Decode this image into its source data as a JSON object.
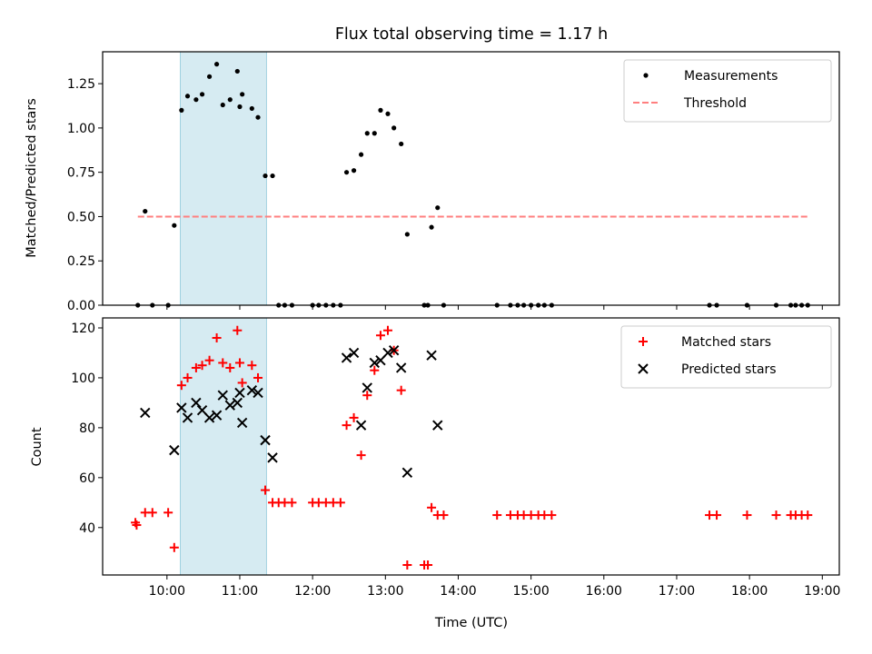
{
  "chart_data": [
    {
      "type": "scatter",
      "title": "Flux total observing time = 1.17 h",
      "xlabel": "",
      "ylabel": "Matched/Predicted stars",
      "xlim": [
        "09:07",
        "19:14"
      ],
      "ylim": [
        0,
        1.43
      ],
      "yticks": [
        0.0,
        0.25,
        0.5,
        0.75,
        1.0,
        1.25
      ],
      "ytick_labels": [
        "0.00",
        "0.25",
        "0.50",
        "0.75",
        "1.00",
        "1.25"
      ],
      "highlight_span": [
        "10:11",
        "11:22"
      ],
      "legend": {
        "position": "top-right",
        "entries": [
          "Measurements",
          "Threshold"
        ]
      },
      "series": [
        {
          "name": "Measurements",
          "marker": "dot",
          "color": "#000000",
          "points": [
            [
              "09:36",
              0.0
            ],
            [
              "09:42",
              0.53
            ],
            [
              "09:48",
              0.0
            ],
            [
              "10:01",
              0.0
            ],
            [
              "10:06",
              0.45
            ],
            [
              "10:12",
              1.1
            ],
            [
              "10:17",
              1.18
            ],
            [
              "10:24",
              1.16
            ],
            [
              "10:29",
              1.19
            ],
            [
              "10:35",
              1.29
            ],
            [
              "10:41",
              1.36
            ],
            [
              "10:46",
              1.13
            ],
            [
              "10:52",
              1.16
            ],
            [
              "10:58",
              1.32
            ],
            [
              "11:00",
              1.12
            ],
            [
              "11:02",
              1.19
            ],
            [
              "11:10",
              1.11
            ],
            [
              "11:15",
              1.06
            ],
            [
              "11:21",
              0.73
            ],
            [
              "11:27",
              0.73
            ],
            [
              "11:32",
              0.0
            ],
            [
              "11:37",
              0.0
            ],
            [
              "11:43",
              0.0
            ],
            [
              "12:00",
              0.0
            ],
            [
              "12:05",
              0.0
            ],
            [
              "12:11",
              0.0
            ],
            [
              "12:17",
              0.0
            ],
            [
              "12:23",
              0.0
            ],
            [
              "12:28",
              0.75
            ],
            [
              "12:34",
              0.76
            ],
            [
              "12:40",
              0.85
            ],
            [
              "12:45",
              0.97
            ],
            [
              "12:51",
              0.97
            ],
            [
              "12:56",
              1.1
            ],
            [
              "13:02",
              1.08
            ],
            [
              "13:07",
              1.0
            ],
            [
              "13:13",
              0.91
            ],
            [
              "13:18",
              0.4
            ],
            [
              "13:32",
              0.0
            ],
            [
              "13:35",
              0.0
            ],
            [
              "13:38",
              0.44
            ],
            [
              "13:43",
              0.55
            ],
            [
              "13:48",
              0.0
            ],
            [
              "14:32",
              0.0
            ],
            [
              "14:43",
              0.0
            ],
            [
              "14:49",
              0.0
            ],
            [
              "14:54",
              0.0
            ],
            [
              "15:00",
              0.0
            ],
            [
              "15:06",
              0.0
            ],
            [
              "15:11",
              0.0
            ],
            [
              "15:17",
              0.0
            ],
            [
              "17:27",
              0.0
            ],
            [
              "17:33",
              0.0
            ],
            [
              "17:58",
              0.0
            ],
            [
              "18:22",
              0.0
            ],
            [
              "18:34",
              0.0
            ],
            [
              "18:38",
              0.0
            ],
            [
              "18:43",
              0.0
            ],
            [
              "18:48",
              0.0
            ]
          ]
        },
        {
          "name": "Threshold",
          "style": "dashed-line",
          "color": "#ff7f7f",
          "points": [
            [
              "09:36",
              0.5
            ],
            [
              "18:48",
              0.5
            ]
          ]
        }
      ]
    },
    {
      "type": "scatter",
      "title": "",
      "xlabel": "Time (UTC)",
      "ylabel": "Count",
      "xlim": [
        "09:07",
        "19:14"
      ],
      "ylim": [
        21,
        124
      ],
      "yticks": [
        40,
        60,
        80,
        100,
        120
      ],
      "ytick_labels": [
        "40",
        "60",
        "80",
        "100",
        "120"
      ],
      "xticks": [
        "10:00",
        "11:00",
        "12:00",
        "13:00",
        "14:00",
        "15:00",
        "16:00",
        "17:00",
        "18:00",
        "19:00"
      ],
      "xtick_labels": [
        "10:00",
        "11:00",
        "12:00",
        "13:00",
        "14:00",
        "15:00",
        "16:00",
        "17:00",
        "18:00",
        "19:00"
      ],
      "highlight_span": [
        "10:11",
        "11:22"
      ],
      "legend": {
        "position": "top-right",
        "entries": [
          "Matched stars",
          "Predicted stars"
        ]
      },
      "series": [
        {
          "name": "Matched stars",
          "marker": "plus",
          "color": "#ff0000",
          "points": [
            [
              "09:34",
              42
            ],
            [
              "09:35",
              41
            ],
            [
              "09:42",
              46
            ],
            [
              "09:48",
              46
            ],
            [
              "10:01",
              46
            ],
            [
              "10:06",
              32
            ],
            [
              "10:12",
              97
            ],
            [
              "10:17",
              100
            ],
            [
              "10:24",
              104
            ],
            [
              "10:29",
              105
            ],
            [
              "10:35",
              107
            ],
            [
              "10:41",
              116
            ],
            [
              "10:46",
              106
            ],
            [
              "10:52",
              104
            ],
            [
              "10:58",
              119
            ],
            [
              "11:00",
              106
            ],
            [
              "11:02",
              98
            ],
            [
              "11:10",
              105
            ],
            [
              "11:15",
              100
            ],
            [
              "11:21",
              55
            ],
            [
              "11:27",
              50
            ],
            [
              "11:32",
              50
            ],
            [
              "11:37",
              50
            ],
            [
              "11:43",
              50
            ],
            [
              "12:00",
              50
            ],
            [
              "12:05",
              50
            ],
            [
              "12:11",
              50
            ],
            [
              "12:17",
              50
            ],
            [
              "12:23",
              50
            ],
            [
              "12:28",
              81
            ],
            [
              "12:34",
              84
            ],
            [
              "12:40",
              69
            ],
            [
              "12:45",
              93
            ],
            [
              "12:51",
              103
            ],
            [
              "12:56",
              117
            ],
            [
              "13:02",
              119
            ],
            [
              "13:07",
              111
            ],
            [
              "13:13",
              95
            ],
            [
              "13:18",
              25
            ],
            [
              "13:32",
              25
            ],
            [
              "13:35",
              25
            ],
            [
              "13:38",
              48
            ],
            [
              "13:43",
              45
            ],
            [
              "13:48",
              45
            ],
            [
              "14:32",
              45
            ],
            [
              "14:43",
              45
            ],
            [
              "14:49",
              45
            ],
            [
              "14:54",
              45
            ],
            [
              "15:00",
              45
            ],
            [
              "15:06",
              45
            ],
            [
              "15:11",
              45
            ],
            [
              "15:17",
              45
            ],
            [
              "17:27",
              45
            ],
            [
              "17:33",
              45
            ],
            [
              "17:58",
              45
            ],
            [
              "18:22",
              45
            ],
            [
              "18:34",
              45
            ],
            [
              "18:38",
              45
            ],
            [
              "18:43",
              45
            ],
            [
              "18:48",
              45
            ]
          ]
        },
        {
          "name": "Predicted stars",
          "marker": "x",
          "color": "#000000",
          "points": [
            [
              "09:42",
              86
            ],
            [
              "10:06",
              71
            ],
            [
              "10:12",
              88
            ],
            [
              "10:17",
              84
            ],
            [
              "10:24",
              90
            ],
            [
              "10:29",
              87
            ],
            [
              "10:35",
              84
            ],
            [
              "10:41",
              85
            ],
            [
              "10:46",
              93
            ],
            [
              "10:52",
              89
            ],
            [
              "10:58",
              90
            ],
            [
              "11:00",
              94
            ],
            [
              "11:02",
              82
            ],
            [
              "11:10",
              95
            ],
            [
              "11:15",
              94
            ],
            [
              "11:21",
              75
            ],
            [
              "11:27",
              68
            ],
            [
              "12:28",
              108
            ],
            [
              "12:34",
              110
            ],
            [
              "12:40",
              81
            ],
            [
              "12:45",
              96
            ],
            [
              "12:51",
              106
            ],
            [
              "12:56",
              107
            ],
            [
              "13:02",
              110
            ],
            [
              "13:07",
              111
            ],
            [
              "13:13",
              104
            ],
            [
              "13:18",
              62
            ],
            [
              "13:38",
              109
            ],
            [
              "13:43",
              81
            ]
          ]
        }
      ]
    }
  ]
}
